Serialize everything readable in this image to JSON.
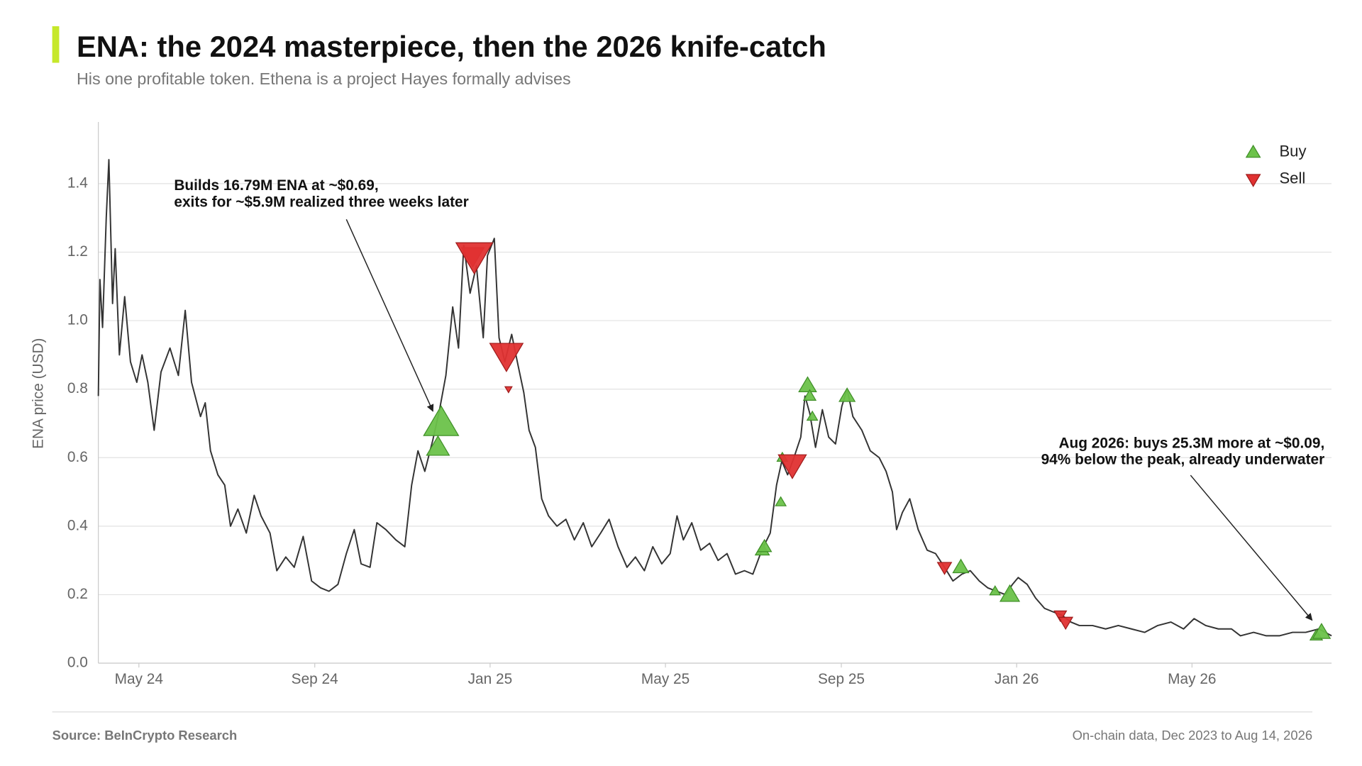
{
  "chart_data": {
    "type": "line",
    "title": "ENA: the 2024 masterpiece, then the 2026 knife-catch",
    "subtitle": "His one profitable token. Ethena is a project Hayes formally advises",
    "y_label": "ENA price (USD)",
    "source": "Source: BeInCrypto Research",
    "note": "On-chain data, Dec 2023 to Aug 14, 2026",
    "color": "#333333",
    "x": [
      2024.256,
      2024.259,
      2024.264,
      2024.271,
      2024.276,
      2024.283,
      2024.288,
      2024.296,
      2024.306,
      2024.317,
      2024.329,
      2024.339,
      2024.35,
      2024.362,
      2024.375,
      2024.392,
      2024.408,
      2024.421,
      2024.433,
      2024.45,
      2024.459,
      2024.469,
      2024.483,
      2024.496,
      2024.507,
      2024.521,
      2024.537,
      2024.552,
      2024.565,
      2024.582,
      2024.595,
      2024.612,
      2024.628,
      2024.645,
      2024.661,
      2024.678,
      2024.694,
      2024.711,
      2024.727,
      2024.742,
      2024.755,
      2024.772,
      2024.785,
      2024.802,
      2024.821,
      2024.838,
      2024.851,
      2024.863,
      2024.876,
      2024.891,
      2024.904,
      2024.916,
      2024.929,
      2024.94,
      2024.95,
      2024.962,
      2024.974,
      2024.987,
      2024.995,
      2025.008,
      2025.017,
      2025.028,
      2025.041,
      2025.053,
      2025.064,
      2025.074,
      2025.086,
      2025.098,
      2025.111,
      2025.127,
      2025.144,
      2025.16,
      2025.177,
      2025.193,
      2025.21,
      2025.226,
      2025.243,
      2025.26,
      2025.276,
      2025.293,
      2025.309,
      2025.326,
      2025.342,
      2025.355,
      2025.367,
      2025.383,
      2025.4,
      2025.417,
      2025.433,
      2025.45,
      2025.466,
      2025.483,
      2025.499,
      2025.516,
      2025.532,
      2025.544,
      2025.554,
      2025.565,
      2025.577,
      2025.59,
      2025.598,
      2025.607,
      2025.618,
      2025.631,
      2025.643,
      2025.656,
      2025.668,
      2025.678,
      2025.689,
      2025.706,
      2025.722,
      2025.739,
      2025.752,
      2025.764,
      2025.772,
      2025.783,
      2025.797,
      2025.813,
      2025.83,
      2025.846,
      2025.863,
      2025.879,
      2025.896,
      2025.912,
      2025.929,
      2025.945,
      2025.962,
      2025.979,
      2025.992,
      2026.003,
      2026.02,
      2026.036,
      2026.053,
      2026.069,
      2026.086,
      2026.103,
      2026.119,
      2026.144,
      2026.169,
      2026.193,
      2026.218,
      2026.243,
      2026.268,
      2026.293,
      2026.317,
      2026.337,
      2026.359,
      2026.383,
      2026.408,
      2026.425,
      2026.45,
      2026.474,
      2026.499,
      2026.524,
      2026.549,
      2026.574,
      2026.598
    ],
    "values": [
      0.78,
      1.12,
      0.98,
      1.3,
      1.47,
      1.05,
      1.21,
      0.9,
      1.07,
      0.88,
      0.82,
      0.9,
      0.82,
      0.68,
      0.85,
      0.92,
      0.84,
      1.03,
      0.82,
      0.72,
      0.76,
      0.62,
      0.55,
      0.52,
      0.4,
      0.45,
      0.38,
      0.49,
      0.43,
      0.38,
      0.27,
      0.31,
      0.28,
      0.37,
      0.24,
      0.22,
      0.21,
      0.23,
      0.32,
      0.39,
      0.29,
      0.28,
      0.41,
      0.39,
      0.36,
      0.34,
      0.52,
      0.62,
      0.56,
      0.65,
      0.74,
      0.84,
      1.04,
      0.92,
      1.22,
      1.08,
      1.16,
      0.95,
      1.19,
      1.24,
      0.95,
      0.88,
      0.96,
      0.87,
      0.79,
      0.68,
      0.63,
      0.48,
      0.43,
      0.4,
      0.42,
      0.36,
      0.41,
      0.34,
      0.38,
      0.42,
      0.34,
      0.28,
      0.31,
      0.27,
      0.34,
      0.29,
      0.32,
      0.43,
      0.36,
      0.41,
      0.33,
      0.35,
      0.3,
      0.32,
      0.26,
      0.27,
      0.26,
      0.33,
      0.38,
      0.52,
      0.59,
      0.55,
      0.6,
      0.66,
      0.78,
      0.73,
      0.63,
      0.74,
      0.66,
      0.64,
      0.75,
      0.8,
      0.72,
      0.68,
      0.62,
      0.6,
      0.56,
      0.5,
      0.39,
      0.44,
      0.48,
      0.39,
      0.33,
      0.32,
      0.28,
      0.24,
      0.26,
      0.27,
      0.24,
      0.22,
      0.21,
      0.2,
      0.23,
      0.25,
      0.23,
      0.19,
      0.16,
      0.15,
      0.14,
      0.12,
      0.11,
      0.11,
      0.1,
      0.11,
      0.1,
      0.09,
      0.11,
      0.12,
      0.1,
      0.13,
      0.11,
      0.1,
      0.1,
      0.08,
      0.09,
      0.08,
      0.08,
      0.09,
      0.09,
      0.1,
      0.08
    ],
    "markers": [
      {
        "name": "Buy",
        "color": "#6cc24a",
        "shape": "up",
        "x": [
          2024.907,
          2024.901,
          2025.517,
          2025.521,
          2025.552,
          2025.555,
          2025.603,
          2025.607,
          2025.612,
          2025.678,
          2025.894,
          2025.959,
          2025.987,
          2026.569,
          2026.579
        ],
        "values": [
          0.7,
          0.63,
          0.33,
          0.34,
          0.47,
          0.6,
          0.81,
          0.78,
          0.72,
          0.78,
          0.28,
          0.21,
          0.2,
          0.08,
          0.09
        ],
        "sizes": [
          20,
          13,
          8,
          8,
          6,
          6,
          10,
          7,
          6,
          9,
          9,
          6,
          11,
          7,
          10
        ]
      },
      {
        "name": "Sell",
        "color": "#e03131",
        "shape": "down",
        "x": [
          2024.967,
          2024.97,
          2025.031,
          2025.035,
          2025.574,
          2025.863,
          2026.083,
          2026.093
        ],
        "values": [
          1.19,
          1.19,
          0.9,
          0.8,
          0.58,
          0.28,
          0.14,
          0.12
        ],
        "sizes": [
          13,
          21,
          19,
          4,
          16,
          8,
          7,
          8
        ]
      }
    ],
    "annotations": [
      {
        "lines": [
          "Builds 16.79M ENA at ~$0.69,",
          "exits for ~$5.9M realized three weeks later"
        ],
        "x": 2024.903,
        "y": 0.7
      },
      {
        "lines": [
          "Aug 2026: buys 25.3M more at ~$0.09,",
          "94% below the peak, already underwater"
        ],
        "x": 2026.571,
        "y": 0.1
      }
    ],
    "xlim": [
      2024.256,
      2026.598
    ],
    "ylim": [
      0,
      1.58
    ],
    "xticks": [
      {
        "value": 2024.333,
        "label": "May 24"
      },
      {
        "value": 2024.667,
        "label": "Sep 24"
      },
      {
        "value": 2025.0,
        "label": "Jan 25"
      },
      {
        "value": 2025.333,
        "label": "May 25"
      },
      {
        "value": 2025.667,
        "label": "Sep 25"
      },
      {
        "value": 2026.0,
        "label": "Jan 26"
      },
      {
        "value": 2026.333,
        "label": "May 26"
      }
    ],
    "yticks": [
      {
        "value": 0,
        "label": "0.0"
      },
      0.2,
      0.4,
      0.6,
      0.8,
      {
        "value": 1,
        "label": "1.0"
      },
      1.2,
      1.4
    ],
    "grid": true,
    "legend": "upper right"
  }
}
